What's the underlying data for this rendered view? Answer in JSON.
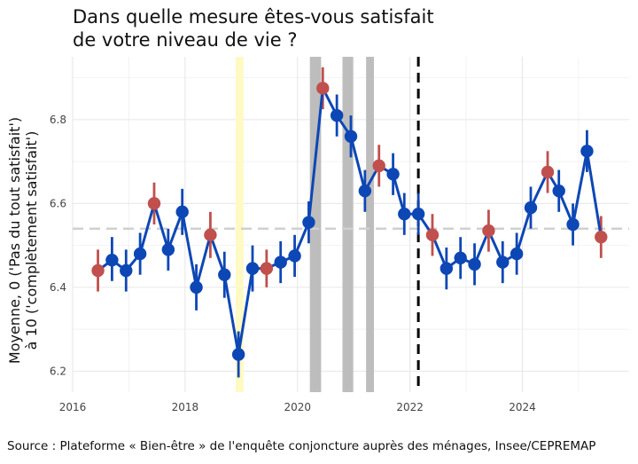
{
  "chart_data": {
    "type": "line",
    "title_line1": "Dans quelle mesure êtes-vous satisfait",
    "title_line2": "de votre niveau de vie ?",
    "ylabel_line1": "Moyenne, 0 ('Pas du tout satisfait')",
    "ylabel_line2": "à 10 ('complètement satisfait')",
    "xlabel": "",
    "xlim": [
      2016,
      2025.9
    ],
    "ylim": [
      6.15,
      6.95
    ],
    "x_ticks": [
      {
        "value": 2016,
        "label": "2016"
      },
      {
        "value": 2018,
        "label": "2018"
      },
      {
        "value": 2020,
        "label": "2020"
      },
      {
        "value": 2022,
        "label": "2022"
      },
      {
        "value": 2024,
        "label": "2024"
      }
    ],
    "y_ticks": [
      {
        "value": 6.2,
        "label": "6.2"
      },
      {
        "value": 6.4,
        "label": "6.4"
      },
      {
        "value": 6.6,
        "label": "6.6"
      },
      {
        "value": 6.8,
        "label": "6.8"
      }
    ],
    "grid": true,
    "reference_line": {
      "y": 6.54,
      "style": "dashed",
      "color": "#d0d0d0"
    },
    "vertical_dashed_line": {
      "x": 2022.15,
      "color": "#000000"
    },
    "shaded_periods": [
      {
        "x0": 2018.9,
        "x1": 2019.04,
        "color": "#fff9c4"
      },
      {
        "x0": 2020.22,
        "x1": 2020.42,
        "color": "#bdbdbd"
      },
      {
        "x0": 2020.8,
        "x1": 2020.99,
        "color": "#bdbdbd"
      },
      {
        "x0": 2021.22,
        "x1": 2021.36,
        "color": "#bdbdbd"
      }
    ],
    "colors": {
      "line": "#0d47b5",
      "point": "#0d47b5",
      "highlight": "#c0504d"
    },
    "series": [
      {
        "points": [
          {
            "x": 2016.45,
            "y": 6.44,
            "lo": 6.39,
            "hi": 6.49,
            "highlight": true
          },
          {
            "x": 2016.7,
            "y": 6.465,
            "lo": 6.415,
            "hi": 6.52,
            "highlight": false
          },
          {
            "x": 2016.95,
            "y": 6.44,
            "lo": 6.39,
            "hi": 6.49,
            "highlight": false
          },
          {
            "x": 2017.2,
            "y": 6.48,
            "lo": 6.43,
            "hi": 6.53,
            "highlight": false
          },
          {
            "x": 2017.45,
            "y": 6.6,
            "lo": 6.55,
            "hi": 6.65,
            "highlight": true
          },
          {
            "x": 2017.7,
            "y": 6.49,
            "lo": 6.44,
            "hi": 6.54,
            "highlight": false
          },
          {
            "x": 2017.95,
            "y": 6.58,
            "lo": 6.525,
            "hi": 6.635,
            "highlight": false
          },
          {
            "x": 2018.2,
            "y": 6.4,
            "lo": 6.345,
            "hi": 6.455,
            "highlight": false
          },
          {
            "x": 2018.45,
            "y": 6.525,
            "lo": 6.47,
            "hi": 6.58,
            "highlight": true
          },
          {
            "x": 2018.7,
            "y": 6.43,
            "lo": 6.375,
            "hi": 6.485,
            "highlight": false
          },
          {
            "x": 2018.95,
            "y": 6.24,
            "lo": 6.185,
            "hi": 6.295,
            "highlight": false
          },
          {
            "x": 2019.2,
            "y": 6.445,
            "lo": 6.39,
            "hi": 6.5,
            "highlight": false
          },
          {
            "x": 2019.45,
            "y": 6.445,
            "lo": 6.4,
            "hi": 6.49,
            "highlight": true
          },
          {
            "x": 2019.7,
            "y": 6.46,
            "lo": 6.41,
            "hi": 6.51,
            "highlight": false
          },
          {
            "x": 2019.95,
            "y": 6.475,
            "lo": 6.425,
            "hi": 6.525,
            "highlight": false
          },
          {
            "x": 2020.2,
            "y": 6.555,
            "lo": 6.505,
            "hi": 6.605,
            "highlight": false
          },
          {
            "x": 2020.45,
            "y": 6.875,
            "lo": 6.825,
            "hi": 6.925,
            "highlight": true
          },
          {
            "x": 2020.7,
            "y": 6.81,
            "lo": 6.76,
            "hi": 6.86,
            "highlight": false
          },
          {
            "x": 2020.95,
            "y": 6.76,
            "lo": 6.71,
            "hi": 6.81,
            "highlight": false
          },
          {
            "x": 2021.2,
            "y": 6.63,
            "lo": 6.58,
            "hi": 6.68,
            "highlight": false
          },
          {
            "x": 2021.45,
            "y": 6.69,
            "lo": 6.64,
            "hi": 6.74,
            "highlight": true
          },
          {
            "x": 2021.7,
            "y": 6.67,
            "lo": 6.62,
            "hi": 6.72,
            "highlight": false
          },
          {
            "x": 2021.9,
            "y": 6.575,
            "lo": 6.525,
            "hi": 6.625,
            "highlight": false
          },
          {
            "x": 2022.15,
            "y": 6.575,
            "lo": 6.525,
            "hi": 6.625,
            "highlight": false
          },
          {
            "x": 2022.4,
            "y": 6.525,
            "lo": 6.475,
            "hi": 6.575,
            "highlight": true
          },
          {
            "x": 2022.65,
            "y": 6.445,
            "lo": 6.395,
            "hi": 6.495,
            "highlight": false
          },
          {
            "x": 2022.9,
            "y": 6.47,
            "lo": 6.42,
            "hi": 6.52,
            "highlight": false
          },
          {
            "x": 2023.15,
            "y": 6.455,
            "lo": 6.405,
            "hi": 6.505,
            "highlight": false
          },
          {
            "x": 2023.4,
            "y": 6.535,
            "lo": 6.485,
            "hi": 6.585,
            "highlight": true
          },
          {
            "x": 2023.65,
            "y": 6.46,
            "lo": 6.41,
            "hi": 6.51,
            "highlight": false
          },
          {
            "x": 2023.9,
            "y": 6.48,
            "lo": 6.43,
            "hi": 6.53,
            "highlight": false
          },
          {
            "x": 2024.15,
            "y": 6.59,
            "lo": 6.54,
            "hi": 6.64,
            "highlight": false
          },
          {
            "x": 2024.45,
            "y": 6.675,
            "lo": 6.625,
            "hi": 6.725,
            "highlight": true
          },
          {
            "x": 2024.65,
            "y": 6.63,
            "lo": 6.58,
            "hi": 6.68,
            "highlight": false
          },
          {
            "x": 2024.9,
            "y": 6.55,
            "lo": 6.5,
            "hi": 6.6,
            "highlight": false
          },
          {
            "x": 2025.15,
            "y": 6.725,
            "lo": 6.675,
            "hi": 6.775,
            "highlight": false
          },
          {
            "x": 2025.4,
            "y": 6.52,
            "lo": 6.47,
            "hi": 6.57,
            "highlight": true
          }
        ]
      }
    ]
  },
  "source": "Source : Plateforme « Bien-être » de l'enquête conjoncture auprès des ménages, Insee/CEPREMAP"
}
